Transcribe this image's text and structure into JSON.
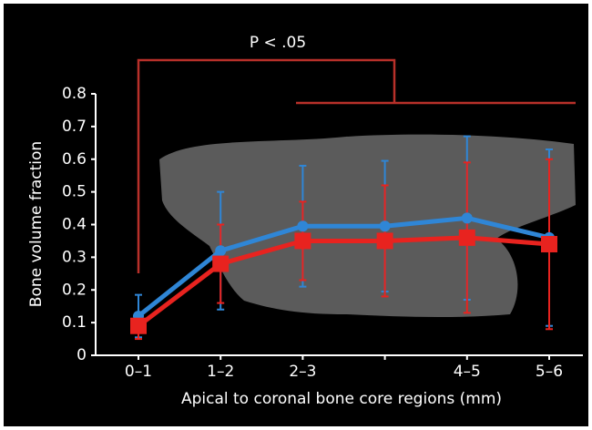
{
  "chart_data": {
    "type": "line",
    "annotation": "P < .05",
    "y_label": "Bone volume fraction",
    "x_label": "Apical to coronal bone core regions (mm)",
    "categories": [
      "0–1",
      "1–2",
      "2–3",
      null,
      "4–5",
      "5–6"
    ],
    "series": [
      {
        "color": "#2f86d6",
        "marker": "circle",
        "values": [
          0.12,
          0.32,
          0.395,
          0.395,
          0.42,
          0.36
        ],
        "errors": [
          0.065,
          0.18,
          0.185,
          0.2,
          0.25,
          0.27
        ]
      },
      {
        "color": "#e8231f",
        "marker": "square",
        "values": [
          0.09,
          0.28,
          0.35,
          0.35,
          0.36,
          0.34
        ],
        "errors": [
          0.04,
          0.12,
          0.12,
          0.17,
          0.23,
          0.26
        ]
      }
    ],
    "ylim": [
      0,
      0.8
    ],
    "yticks": [
      0,
      0.1,
      0.2,
      0.3,
      0.4,
      0.5,
      0.6,
      0.7,
      0.8
    ]
  }
}
